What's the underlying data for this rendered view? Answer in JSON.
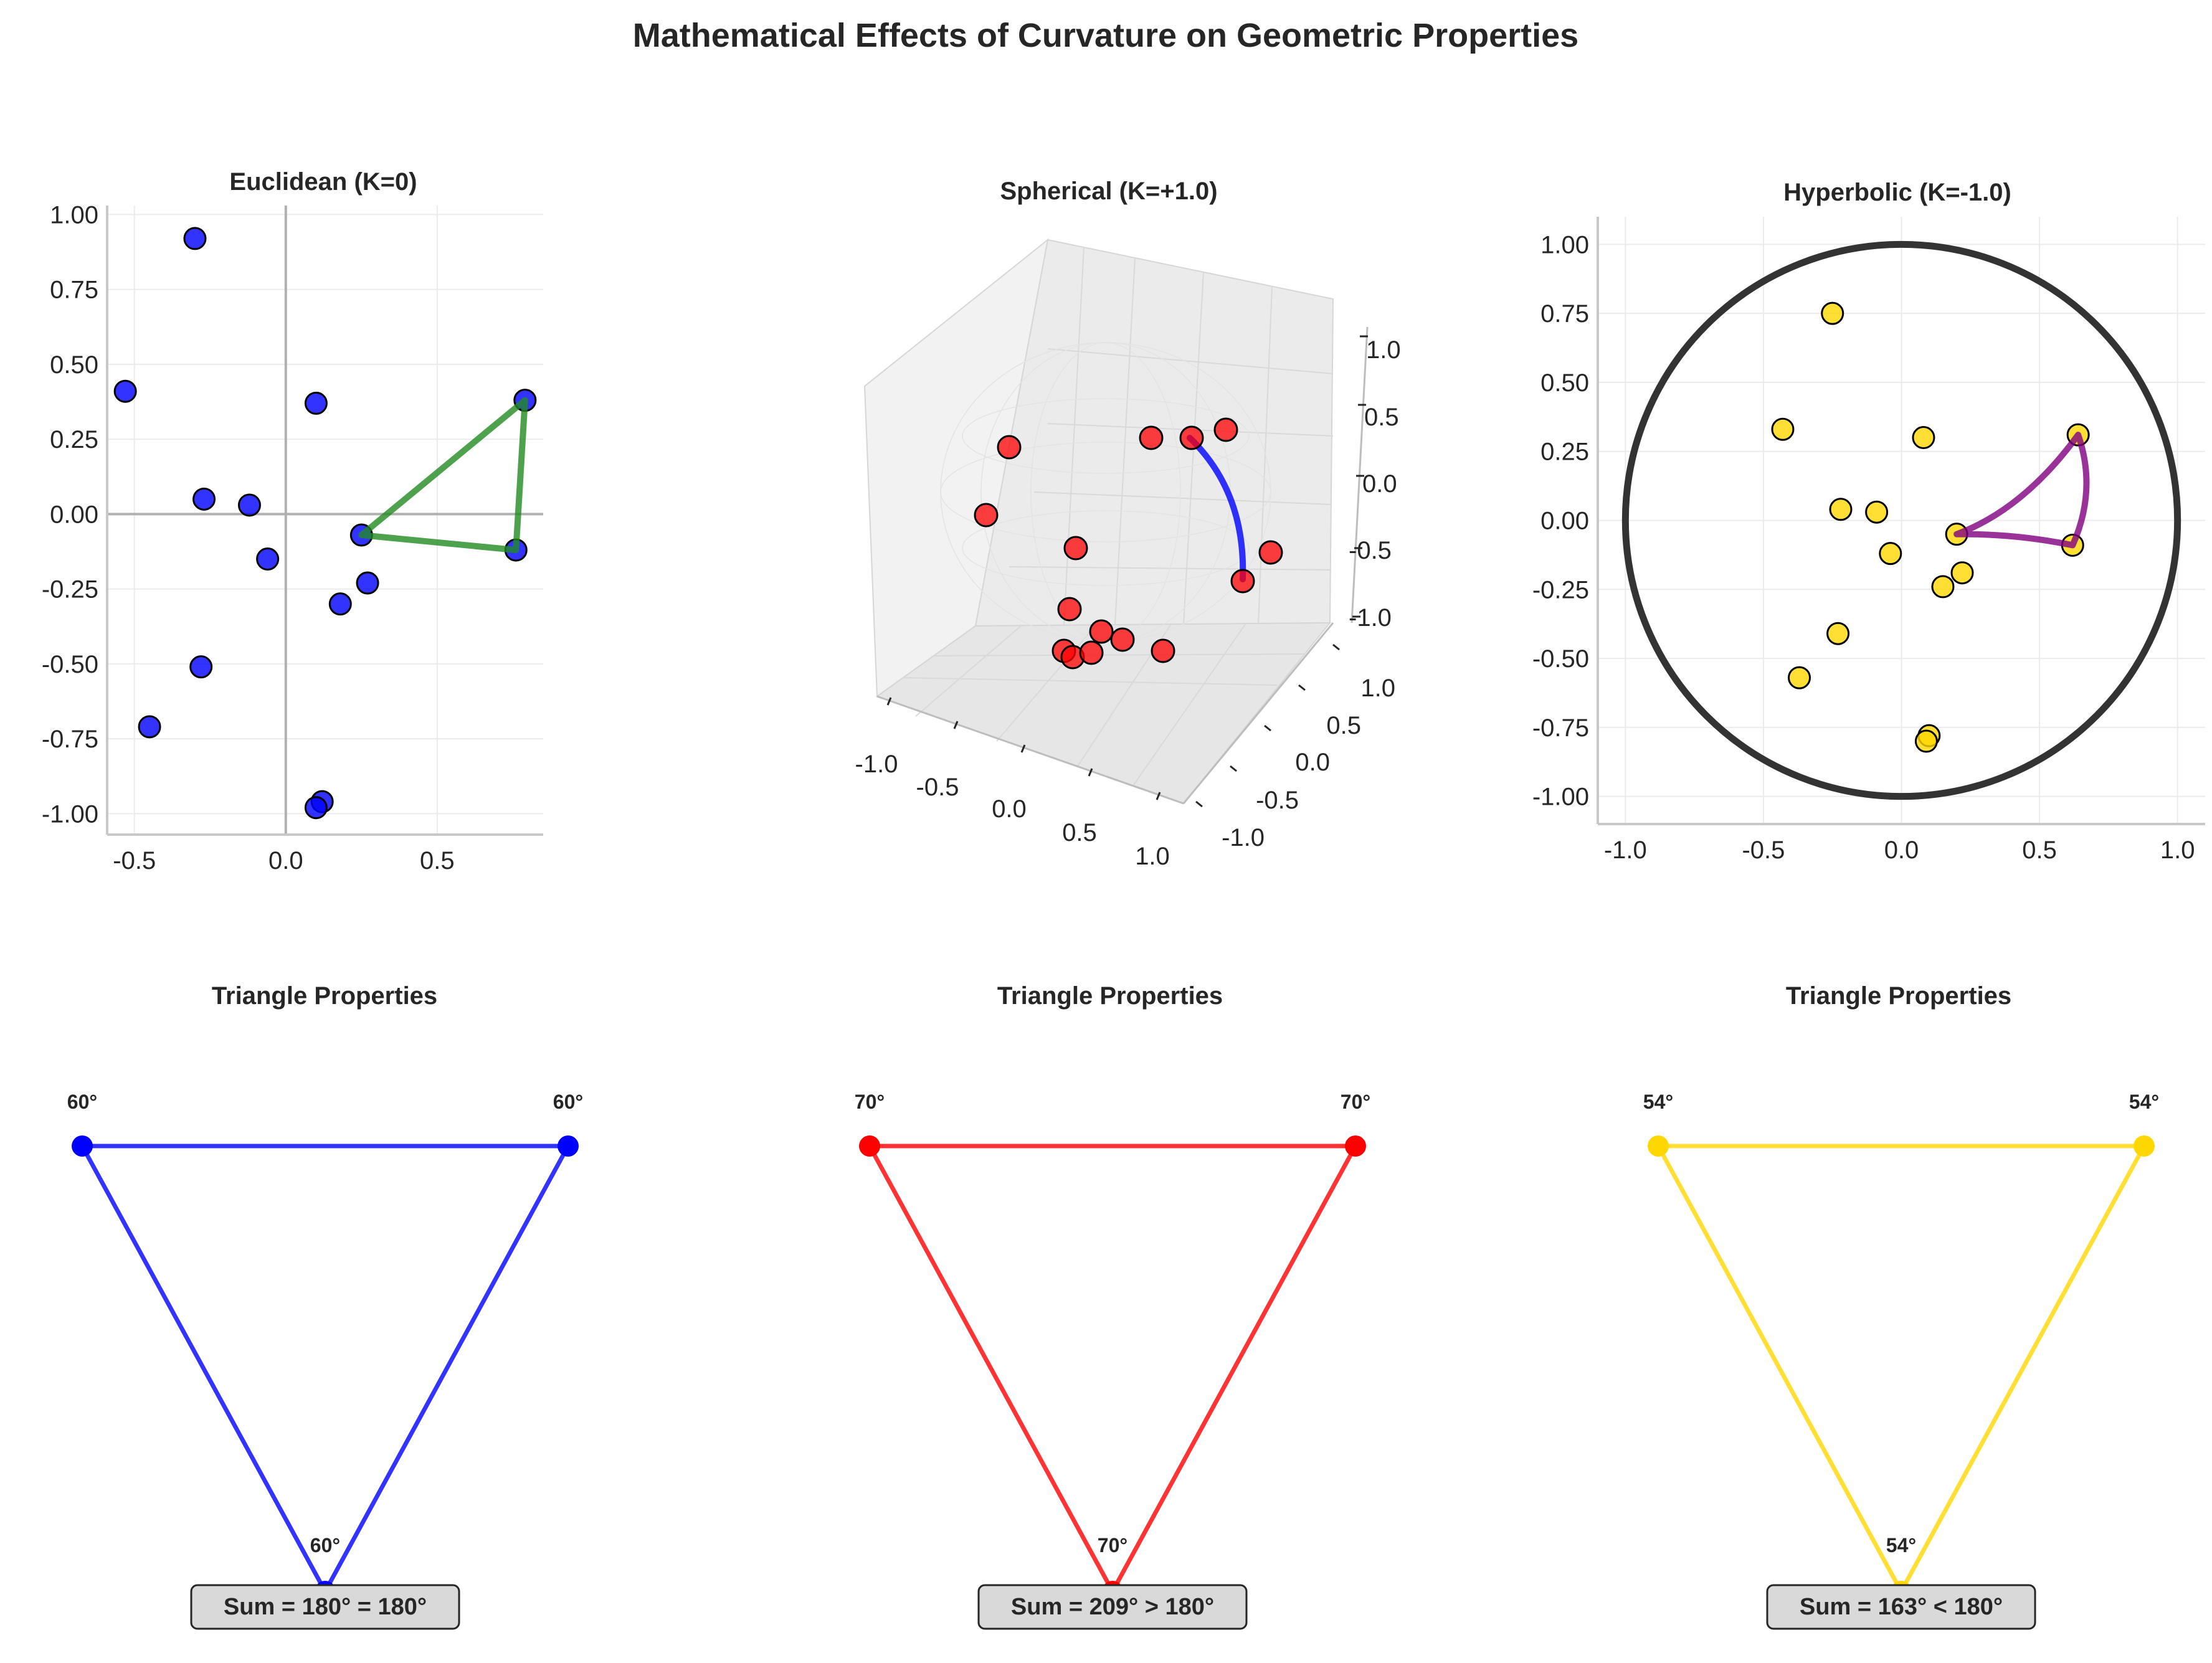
{
  "title": "Mathematical Effects of Curvature on Geometric Properties",
  "colors": {
    "euclidean": "#0000ff",
    "spherical": "#ff0000",
    "hyperbolic": "#ffd700",
    "euclidean_triangle": "#228b22",
    "spherical_geodesic": "#0000ff",
    "hyperbolic_triangle": "#800080",
    "poincare_disk": "#333333"
  },
  "chart_data": [
    {
      "type": "scatter",
      "title": "Euclidean (K=0)",
      "xlim": [
        -0.59,
        0.85
      ],
      "ylim": [
        -1.07,
        1.03
      ],
      "xticks": [
        "-0.5",
        "0.0",
        "0.5"
      ],
      "yticks": [
        "1.00",
        "0.75",
        "0.50",
        "0.25",
        "0.00",
        "-0.25",
        "-0.50",
        "-0.75",
        "-1.00"
      ],
      "grid": true,
      "points": [
        {
          "x": -0.3,
          "y": 0.92
        },
        {
          "x": -0.53,
          "y": 0.41
        },
        {
          "x": 0.1,
          "y": 0.37
        },
        {
          "x": -0.27,
          "y": 0.05
        },
        {
          "x": -0.12,
          "y": 0.03
        },
        {
          "x": -0.06,
          "y": -0.15
        },
        {
          "x": 0.25,
          "y": -0.07
        },
        {
          "x": 0.27,
          "y": -0.23
        },
        {
          "x": 0.18,
          "y": -0.3
        },
        {
          "x": -0.28,
          "y": -0.51
        },
        {
          "x": -0.45,
          "y": -0.71
        },
        {
          "x": 0.12,
          "y": -0.96
        },
        {
          "x": 0.1,
          "y": -0.98
        },
        {
          "x": 0.76,
          "y": -0.12
        },
        {
          "x": 0.79,
          "y": 0.38
        }
      ],
      "triangle": [
        {
          "x": 0.25,
          "y": -0.07
        },
        {
          "x": 0.79,
          "y": 0.38
        },
        {
          "x": 0.76,
          "y": -0.12
        }
      ]
    },
    {
      "type": "scatter",
      "title": "Spherical (K=+1.0)",
      "xticks": [
        "-1.0",
        "-0.5",
        "0.0",
        "0.5",
        "1.0"
      ],
      "yticks": [
        "1.0",
        "0.5",
        "0.0",
        "-0.5",
        "-1.0"
      ],
      "zticks": [
        "1.0",
        "0.5",
        "0.0",
        "-0.5",
        "-1.0"
      ],
      "grid": true
    },
    {
      "type": "scatter",
      "title": "Hyperbolic (K=-1.0)",
      "xlim": [
        -1.1,
        1.1
      ],
      "ylim": [
        -1.1,
        1.1
      ],
      "xticks": [
        "-1.0",
        "-0.5",
        "0.0",
        "0.5",
        "1.0"
      ],
      "yticks": [
        "1.00",
        "0.75",
        "0.50",
        "0.25",
        "0.00",
        "-0.25",
        "-0.50",
        "-0.75",
        "-1.00"
      ],
      "grid": true,
      "disk_radius": 1.0,
      "points": [
        {
          "x": -0.25,
          "y": 0.75
        },
        {
          "x": -0.43,
          "y": 0.33
        },
        {
          "x": 0.08,
          "y": 0.3
        },
        {
          "x": 0.64,
          "y": 0.31
        },
        {
          "x": -0.22,
          "y": 0.04
        },
        {
          "x": -0.09,
          "y": 0.03
        },
        {
          "x": 0.2,
          "y": -0.05
        },
        {
          "x": 0.62,
          "y": -0.09
        },
        {
          "x": -0.04,
          "y": -0.12
        },
        {
          "x": 0.22,
          "y": -0.19
        },
        {
          "x": 0.15,
          "y": -0.24
        },
        {
          "x": -0.23,
          "y": -0.41
        },
        {
          "x": -0.37,
          "y": -0.57
        },
        {
          "x": 0.1,
          "y": -0.78
        },
        {
          "x": 0.09,
          "y": -0.8
        }
      ],
      "triangle": [
        {
          "x": 0.2,
          "y": -0.05
        },
        {
          "x": 0.64,
          "y": 0.31
        },
        {
          "x": 0.62,
          "y": -0.09
        }
      ]
    },
    {
      "type": "line",
      "title": "Triangle Properties",
      "angles": [
        "60°",
        "60°",
        "60°"
      ],
      "sum_label": "Sum = 180° = 180°"
    },
    {
      "type": "line",
      "title": "Triangle Properties",
      "angles": [
        "70°",
        "70°",
        "70°"
      ],
      "sum_label": "Sum = 209° > 180°"
    },
    {
      "type": "line",
      "title": "Triangle Properties",
      "angles": [
        "54°",
        "54°",
        "54°"
      ],
      "sum_label": "Sum = 163° < 180°"
    }
  ]
}
